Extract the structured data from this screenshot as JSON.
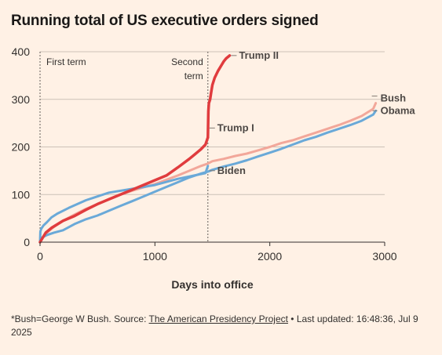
{
  "title": "Running total of US executive orders signed",
  "footnote": {
    "prefix": "*Bush=George W Bush. Source: ",
    "source_link": "The American Presidency Project",
    "suffix": " • Last updated: 16:48:36, Jul 9 2025"
  },
  "colors": {
    "background": "#fff1e5",
    "gridline": "#ccc1b7",
    "trump": "#e03c3e",
    "bush": "#f2a79a",
    "obama": "#6aa9d8",
    "biden": "#6aa9d8"
  },
  "chart_data": {
    "type": "line",
    "title": "Running total of US executive orders signed",
    "xlabel": "Days into office",
    "ylabel": "",
    "xlim": [
      0,
      3000
    ],
    "ylim": [
      0,
      400
    ],
    "xticks": [
      0,
      1000,
      2000,
      3000
    ],
    "yticks": [
      0,
      100,
      200,
      300,
      400
    ],
    "grid": "horizontal",
    "annotations": [
      {
        "x": 0,
        "text": "First term"
      },
      {
        "x": 1461,
        "text": "Second term"
      }
    ],
    "series": [
      {
        "name": "Bush",
        "color": "#f2a79a",
        "width": 3,
        "x": [
          0,
          20,
          60,
          120,
          200,
          300,
          400,
          500,
          600,
          700,
          800,
          900,
          1000,
          1100,
          1200,
          1300,
          1400,
          1460,
          1500,
          1600,
          1700,
          1800,
          1900,
          2000,
          2100,
          2200,
          2300,
          2400,
          2500,
          2600,
          2700,
          2800,
          2900,
          2922
        ],
        "y": [
          0,
          8,
          20,
          32,
          45,
          58,
          70,
          80,
          90,
          100,
          108,
          115,
          122,
          131,
          140,
          150,
          160,
          165,
          170,
          175,
          181,
          186,
          193,
          200,
          208,
          214,
          222,
          230,
          238,
          246,
          255,
          265,
          280,
          292
        ]
      },
      {
        "name": "Obama",
        "color": "#6aa9d8",
        "width": 3,
        "x": [
          0,
          20,
          60,
          120,
          200,
          300,
          400,
          500,
          600,
          700,
          800,
          900,
          1000,
          1100,
          1200,
          1300,
          1400,
          1460,
          1500,
          1600,
          1700,
          1800,
          1900,
          2000,
          2100,
          2200,
          2300,
          2400,
          2500,
          2600,
          2700,
          2800,
          2900,
          2922
        ],
        "y": [
          0,
          10,
          15,
          20,
          25,
          38,
          48,
          56,
          66,
          76,
          86,
          96,
          106,
          116,
          126,
          136,
          144,
          148,
          152,
          159,
          165,
          172,
          180,
          188,
          196,
          205,
          214,
          221,
          230,
          238,
          246,
          255,
          268,
          276
        ]
      },
      {
        "name": "Biden",
        "color": "#6aa9d8",
        "width": 3,
        "x": [
          0,
          3,
          10,
          30,
          60,
          100,
          150,
          250,
          400,
          600,
          800,
          1000,
          1200,
          1300,
          1400,
          1440,
          1461
        ],
        "y": [
          0,
          22,
          28,
          35,
          42,
          52,
          60,
          72,
          88,
          104,
          112,
          120,
          133,
          138,
          143,
          145,
          160
        ]
      },
      {
        "name": "Trump I",
        "color": "#e03c3e",
        "width": 3.5,
        "x": [
          0,
          50,
          100,
          200,
          300,
          400,
          500,
          600,
          700,
          800,
          900,
          1000,
          1100,
          1200,
          1300,
          1350,
          1400,
          1440,
          1461
        ],
        "y": [
          0,
          20,
          30,
          45,
          55,
          68,
          80,
          90,
          100,
          110,
          120,
          130,
          140,
          157,
          175,
          185,
          195,
          205,
          220
        ]
      },
      {
        "name": "Trump II",
        "color": "#e03c3e",
        "width": 3.5,
        "x": [
          1461,
          1465,
          1470,
          1480,
          1490,
          1500,
          1520,
          1550,
          1580,
          1600,
          1620,
          1640,
          1650
        ],
        "y": [
          220,
          275,
          292,
          300,
          315,
          330,
          345,
          360,
          372,
          380,
          386,
          390,
          392
        ]
      }
    ],
    "labels": [
      {
        "series": "Trump II",
        "text": "Trump II"
      },
      {
        "series": "Bush",
        "text": "Bush"
      },
      {
        "series": "Obama",
        "text": "Obama"
      },
      {
        "series": "Trump I",
        "text": "Trump I"
      },
      {
        "series": "Biden",
        "text": "Biden"
      }
    ]
  }
}
